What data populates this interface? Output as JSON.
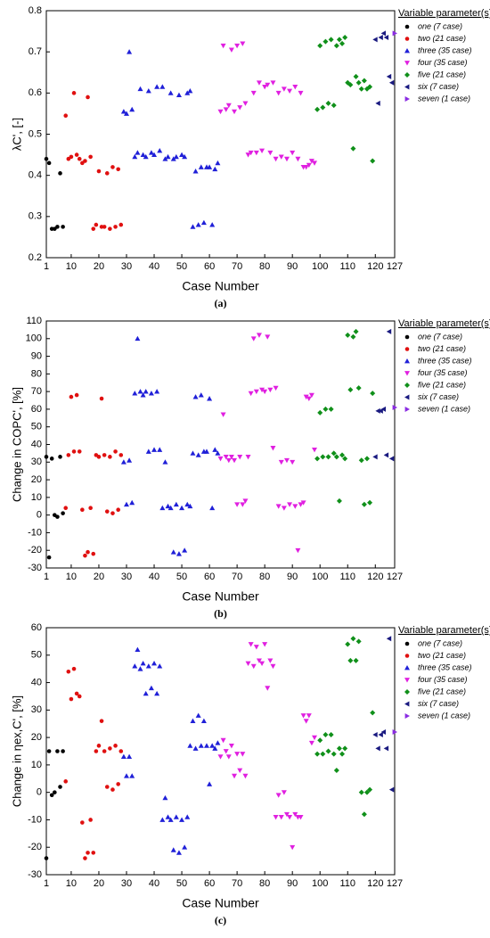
{
  "chart_data": [
    {
      "type": "scatter",
      "panel_label": "(a)",
      "xlabel": "Case Number",
      "ylabel": "λC', [-]",
      "legend_title": "Variable parameter(s)",
      "xlim": [
        1,
        127
      ],
      "xticks": [
        1,
        10,
        20,
        30,
        40,
        50,
        60,
        70,
        80,
        90,
        100,
        110,
        120,
        127
      ],
      "ylim": [
        0.2,
        0.8
      ],
      "yticks": [
        0.2,
        0.3,
        0.4,
        0.5,
        0.6,
        0.7,
        0.8
      ],
      "series": [
        {
          "name": "one (7 case)",
          "color": "#000000",
          "marker": "circle",
          "x": [
            1,
            2,
            3,
            4,
            5,
            6,
            7
          ],
          "values": [
            0.44,
            0.43,
            0.27,
            0.27,
            0.275,
            0.405,
            0.275
          ]
        },
        {
          "name": "two (21 case)",
          "color": "#e01010",
          "marker": "circle",
          "x": [
            8,
            9,
            10,
            11,
            12,
            13,
            14,
            15,
            16,
            17,
            18,
            19,
            20,
            21,
            22,
            23,
            24,
            25,
            26,
            27,
            28
          ],
          "values": [
            0.545,
            0.44,
            0.445,
            0.6,
            0.45,
            0.44,
            0.43,
            0.435,
            0.59,
            0.445,
            0.27,
            0.28,
            0.41,
            0.275,
            0.275,
            0.405,
            0.27,
            0.42,
            0.275,
            0.415,
            0.28
          ]
        },
        {
          "name": "three (35 case)",
          "color": "#2020d8",
          "marker": "triangle-up",
          "x": [
            29,
            30,
            31,
            32,
            33,
            34,
            35,
            36,
            37,
            38,
            39,
            40,
            41,
            42,
            43,
            44,
            45,
            46,
            47,
            48,
            49,
            50,
            51,
            52,
            53,
            54,
            55,
            56,
            57,
            58,
            59,
            60,
            61,
            62,
            63
          ],
          "values": [
            0.555,
            0.55,
            0.7,
            0.56,
            0.445,
            0.455,
            0.61,
            0.45,
            0.445,
            0.605,
            0.455,
            0.45,
            0.615,
            0.46,
            0.615,
            0.44,
            0.445,
            0.6,
            0.44,
            0.445,
            0.595,
            0.45,
            0.445,
            0.6,
            0.605,
            0.275,
            0.41,
            0.28,
            0.42,
            0.285,
            0.42,
            0.42,
            0.28,
            0.415,
            0.43
          ]
        },
        {
          "name": "four (35 case)",
          "color": "#e020e0",
          "marker": "triangle-down",
          "x": [
            64,
            65,
            66,
            67,
            68,
            69,
            70,
            71,
            72,
            73,
            74,
            75,
            76,
            77,
            78,
            79,
            80,
            81,
            82,
            83,
            84,
            85,
            86,
            87,
            88,
            89,
            90,
            91,
            92,
            93,
            94,
            95,
            96,
            97,
            98
          ],
          "values": [
            0.555,
            0.715,
            0.56,
            0.57,
            0.705,
            0.555,
            0.715,
            0.565,
            0.72,
            0.575,
            0.45,
            0.455,
            0.6,
            0.455,
            0.625,
            0.46,
            0.615,
            0.62,
            0.455,
            0.625,
            0.44,
            0.6,
            0.445,
            0.61,
            0.44,
            0.605,
            0.455,
            0.615,
            0.44,
            0.6,
            0.42,
            0.42,
            0.425,
            0.435,
            0.43
          ]
        },
        {
          "name": "five (21 case)",
          "color": "#10901a",
          "marker": "diamond",
          "x": [
            99,
            100,
            101,
            102,
            103,
            104,
            105,
            106,
            107,
            108,
            109,
            110,
            111,
            112,
            113,
            114,
            115,
            116,
            117,
            118,
            119
          ],
          "values": [
            0.56,
            0.715,
            0.565,
            0.725,
            0.575,
            0.73,
            0.57,
            0.715,
            0.73,
            0.72,
            0.735,
            0.625,
            0.62,
            0.465,
            0.64,
            0.625,
            0.61,
            0.63,
            0.61,
            0.615,
            0.435
          ]
        },
        {
          "name": "six (7 case)",
          "color": "#1a1a80",
          "marker": "triangle-left",
          "x": [
            120,
            121,
            122,
            123,
            124,
            125,
            126
          ],
          "values": [
            0.73,
            0.575,
            0.735,
            0.745,
            0.735,
            0.64,
            0.625
          ]
        },
        {
          "name": "seven (1 case)",
          "color": "#8a2be2",
          "marker": "triangle-right",
          "x": [
            127
          ],
          "values": [
            0.745
          ]
        }
      ]
    },
    {
      "type": "scatter",
      "panel_label": "(b)",
      "xlabel": "Case Number",
      "ylabel": "Change in COPC', [%]",
      "legend_title": "Variable parameter(s)",
      "xlim": [
        1,
        127
      ],
      "xticks": [
        1,
        10,
        20,
        30,
        40,
        50,
        60,
        70,
        80,
        90,
        100,
        110,
        120,
        127
      ],
      "ylim": [
        -30,
        110
      ],
      "yticks": [
        -30,
        -20,
        -10,
        0,
        10,
        20,
        30,
        40,
        50,
        60,
        70,
        80,
        90,
        100,
        110
      ],
      "series": [
        {
          "name": "one (7 case)",
          "color": "#000000",
          "marker": "circle",
          "x": [
            1,
            2,
            3,
            4,
            5,
            6,
            7
          ],
          "values": [
            33,
            -24,
            32,
            0,
            -1,
            33,
            1
          ]
        },
        {
          "name": "two (21 case)",
          "color": "#e01010",
          "marker": "circle",
          "x": [
            8,
            9,
            10,
            11,
            12,
            13,
            14,
            15,
            16,
            17,
            18,
            19,
            20,
            21,
            22,
            23,
            24,
            25,
            26,
            27,
            28
          ],
          "values": [
            4,
            34,
            67,
            36,
            68,
            36,
            3,
            -23,
            -21,
            4,
            -22,
            34,
            33,
            66,
            34,
            2,
            33,
            1,
            36,
            3,
            34
          ]
        },
        {
          "name": "three (35 case)",
          "color": "#2020d8",
          "marker": "triangle-up",
          "x": [
            29,
            30,
            31,
            32,
            33,
            34,
            35,
            36,
            37,
            38,
            39,
            40,
            41,
            42,
            43,
            44,
            45,
            46,
            47,
            48,
            49,
            50,
            51,
            52,
            53,
            54,
            55,
            56,
            57,
            58,
            59,
            60,
            61,
            62,
            63
          ],
          "values": [
            30,
            6,
            31,
            7,
            69,
            100,
            70,
            68,
            70,
            36,
            69,
            37,
            70,
            37,
            4,
            30,
            5,
            4,
            -21,
            6,
            -22,
            4,
            -20,
            6,
            5,
            35,
            67,
            34,
            68,
            36,
            36,
            66,
            4,
            37,
            35
          ]
        },
        {
          "name": "four (35 case)",
          "color": "#e020e0",
          "marker": "triangle-down",
          "x": [
            64,
            65,
            66,
            67,
            68,
            69,
            70,
            71,
            72,
            73,
            74,
            75,
            76,
            77,
            78,
            79,
            80,
            81,
            82,
            83,
            84,
            85,
            86,
            87,
            88,
            89,
            90,
            91,
            92,
            93,
            94,
            95,
            96,
            97,
            98
          ],
          "values": [
            32,
            57,
            33,
            31,
            33,
            31,
            6,
            33,
            6,
            8,
            33,
            69,
            100,
            70,
            102,
            71,
            70,
            101,
            71,
            38,
            72,
            5,
            30,
            4,
            31,
            6,
            30,
            5,
            -20,
            6,
            7,
            67,
            66,
            68,
            37
          ]
        },
        {
          "name": "five (21 case)",
          "color": "#10901a",
          "marker": "diamond",
          "x": [
            99,
            100,
            101,
            102,
            103,
            104,
            105,
            106,
            107,
            108,
            109,
            110,
            111,
            112,
            113,
            114,
            115,
            116,
            117,
            118,
            119
          ],
          "values": [
            32,
            58,
            33,
            60,
            33,
            60,
            35,
            33,
            8,
            34,
            32,
            102,
            71,
            101,
            104,
            72,
            31,
            6,
            32,
            7,
            69
          ]
        },
        {
          "name": "six (7 case)",
          "color": "#1a1a80",
          "marker": "triangle-left",
          "x": [
            120,
            121,
            122,
            123,
            124,
            125,
            126
          ],
          "values": [
            33,
            59,
            59,
            60,
            34,
            104,
            32
          ]
        },
        {
          "name": "seven (1 case)",
          "color": "#8a2be2",
          "marker": "triangle-right",
          "x": [
            127
          ],
          "values": [
            61
          ]
        }
      ]
    },
    {
      "type": "scatter",
      "panel_label": "(c)",
      "xlabel": "Case Number",
      "ylabel": "Change in ηex,C', [%]",
      "legend_title": "Variable parameter(s)",
      "xlim": [
        1,
        127
      ],
      "xticks": [
        1,
        10,
        20,
        30,
        40,
        50,
        60,
        70,
        80,
        90,
        100,
        110,
        120,
        127
      ],
      "ylim": [
        -30,
        60
      ],
      "yticks": [
        -30,
        -20,
        -10,
        0,
        10,
        20,
        30,
        40,
        50,
        60
      ],
      "series": [
        {
          "name": "one (7 case)",
          "color": "#000000",
          "marker": "circle",
          "x": [
            1,
            2,
            3,
            4,
            5,
            6,
            7
          ],
          "values": [
            -24,
            15,
            -1,
            0,
            15,
            2,
            15
          ]
        },
        {
          "name": "two (21 case)",
          "color": "#e01010",
          "marker": "circle",
          "x": [
            8,
            9,
            10,
            11,
            12,
            13,
            14,
            15,
            16,
            17,
            18,
            19,
            20,
            21,
            22,
            23,
            24,
            25,
            26,
            27,
            28
          ],
          "values": [
            4,
            44,
            34,
            45,
            36,
            35,
            -11,
            -24,
            -22,
            -10,
            -22,
            15,
            17,
            26,
            15,
            2,
            16,
            1,
            17,
            3,
            15
          ]
        },
        {
          "name": "three (35 case)",
          "color": "#2020d8",
          "marker": "triangle-up",
          "x": [
            29,
            30,
            31,
            32,
            33,
            34,
            35,
            36,
            37,
            38,
            39,
            40,
            41,
            42,
            43,
            44,
            45,
            46,
            47,
            48,
            49,
            50,
            51,
            52,
            53,
            54,
            55,
            56,
            57,
            58,
            59,
            60,
            61,
            62,
            63
          ],
          "values": [
            13,
            6,
            13,
            6,
            46,
            52,
            45,
            47,
            36,
            46,
            38,
            47,
            36,
            46,
            -10,
            -2,
            -9,
            -10,
            -21,
            -9,
            -22,
            -10,
            -20,
            -9,
            17,
            26,
            16,
            28,
            17,
            26,
            17,
            3,
            17,
            16,
            18
          ]
        },
        {
          "name": "four (35 case)",
          "color": "#e020e0",
          "marker": "triangle-down",
          "x": [
            64,
            65,
            66,
            67,
            68,
            69,
            70,
            71,
            72,
            73,
            74,
            75,
            76,
            77,
            78,
            79,
            80,
            81,
            82,
            83,
            84,
            85,
            86,
            87,
            88,
            89,
            90,
            91,
            92,
            93,
            94,
            95,
            96,
            97,
            98
          ],
          "values": [
            13,
            19,
            15,
            13,
            17,
            6,
            14,
            8,
            14,
            6,
            47,
            54,
            46,
            53,
            48,
            47,
            54,
            38,
            48,
            46,
            -9,
            -1,
            -9,
            0,
            -8,
            -9,
            -20,
            -8,
            -9,
            -9,
            28,
            26,
            28,
            18,
            20
          ]
        },
        {
          "name": "five (21 case)",
          "color": "#10901a",
          "marker": "diamond",
          "x": [
            99,
            100,
            101,
            102,
            103,
            104,
            105,
            106,
            107,
            108,
            109,
            110,
            111,
            112,
            113,
            114,
            115,
            116,
            117,
            118,
            119
          ],
          "values": [
            14,
            19,
            14,
            21,
            15,
            21,
            14,
            8,
            16,
            14,
            16,
            54,
            48,
            56,
            48,
            55,
            0,
            -8,
            0,
            1,
            29
          ]
        },
        {
          "name": "six (7 case)",
          "color": "#1a1a80",
          "marker": "triangle-left",
          "x": [
            120,
            121,
            122,
            123,
            124,
            125,
            126
          ],
          "values": [
            21,
            16,
            21,
            22,
            16,
            56,
            1
          ]
        },
        {
          "name": "seven (1 case)",
          "color": "#8a2be2",
          "marker": "triangle-right",
          "x": [
            127
          ],
          "values": [
            22
          ]
        }
      ]
    }
  ]
}
